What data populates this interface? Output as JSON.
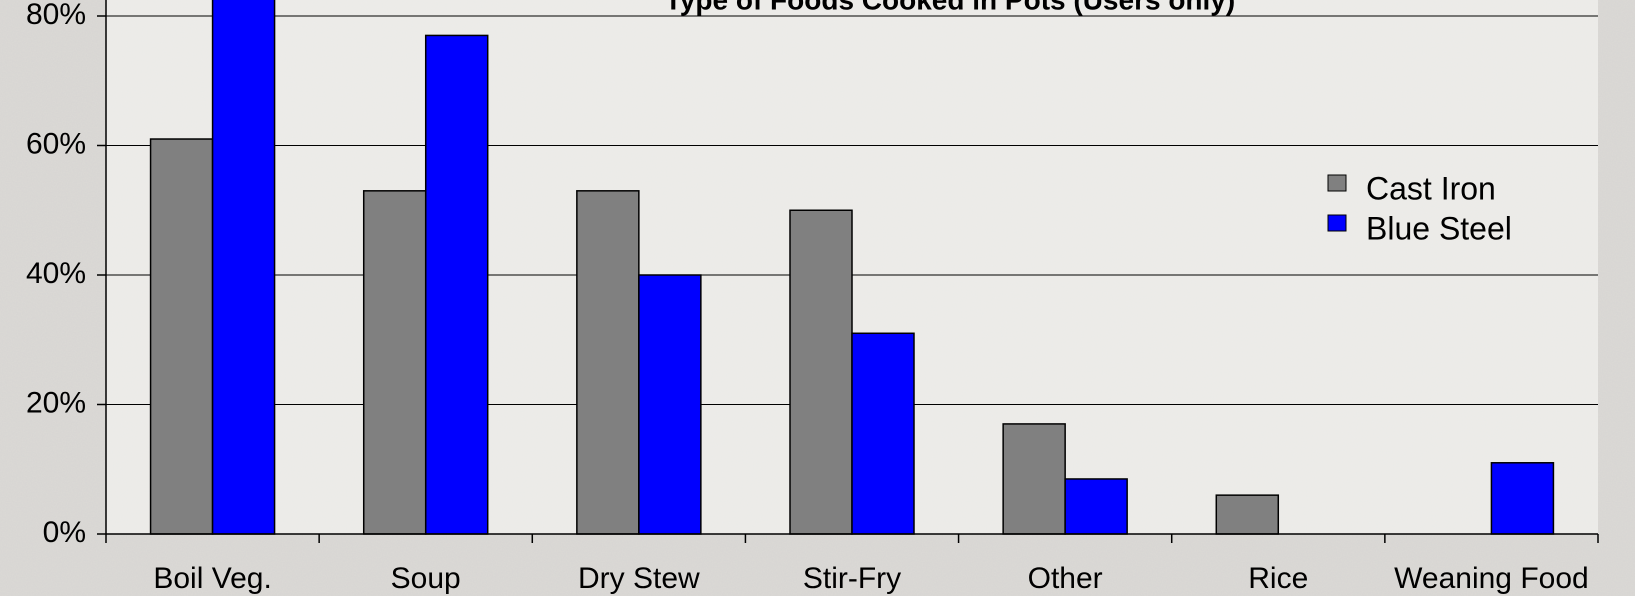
{
  "chart_data": {
    "type": "bar",
    "title": "Type of Foods Cooked in Pots (Users only)",
    "categories": [
      "Boil Veg.",
      "Soup",
      "Dry Stew",
      "Stir-Fry",
      "Other",
      "Rice",
      "Weaning Food"
    ],
    "series": [
      {
        "name": "Cast Iron",
        "color": "#808080",
        "values": [
          61,
          53,
          53,
          50,
          17,
          6,
          0
        ]
      },
      {
        "name": "Blue Steel",
        "color": "#0000ff",
        "values": [
          85,
          77,
          40,
          31,
          8.5,
          0,
          11
        ]
      }
    ],
    "ylim": [
      0,
      80
    ],
    "yticks": [
      {
        "value": 0,
        "label": "0%"
      },
      {
        "value": 20,
        "label": "20%"
      },
      {
        "value": 40,
        "label": "40%"
      },
      {
        "value": 60,
        "label": "60%"
      },
      {
        "value": 80,
        "label": "80%"
      }
    ],
    "grid": true,
    "legend": "right"
  }
}
